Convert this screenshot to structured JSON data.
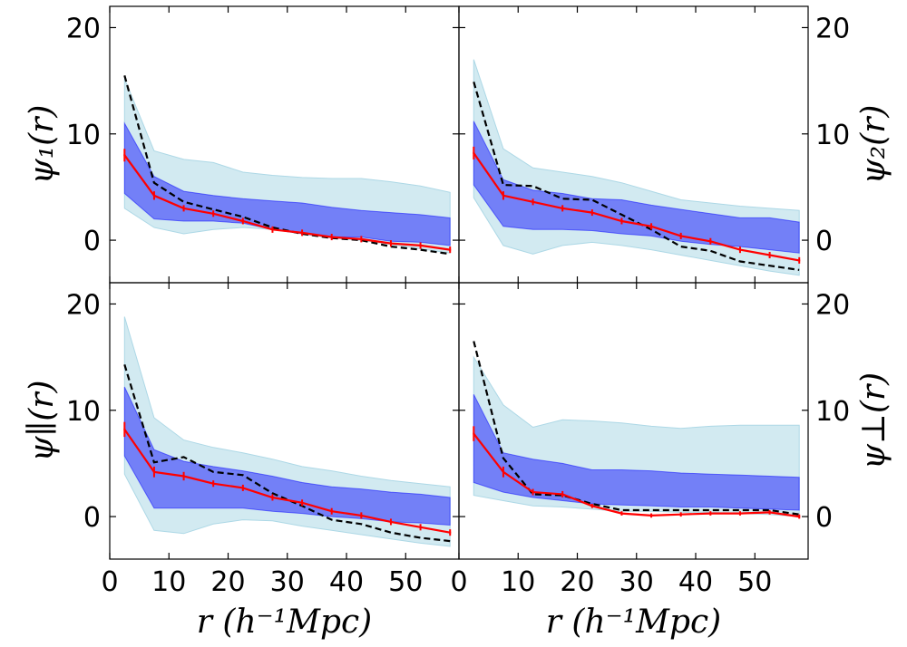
{
  "chart_data": {
    "type": "line",
    "layout": "2x2 grid of panels sharing x axis",
    "xlabel": "r (h⁻¹Mpc)",
    "xlim": [
      0,
      59
    ],
    "ylim": [
      -4,
      22
    ],
    "x_ticks": [
      0,
      10,
      20,
      30,
      40,
      50
    ],
    "y_ticks": [
      0,
      10,
      20
    ],
    "x": [
      2.5,
      7.5,
      12.5,
      17.5,
      22.5,
      27.5,
      32.5,
      37.5,
      42.5,
      47.5,
      52.5,
      57.5
    ],
    "colors": {
      "outer_band": "#add8e6",
      "inner_band": "#0000ff",
      "mean_line": "#ff0000",
      "dashed_line": "#000000"
    },
    "panels": [
      {
        "ylabel": "ψ₁(r)",
        "ylabel_side": "left",
        "mean": [
          8.0,
          4.2,
          3.0,
          2.5,
          1.8,
          1.0,
          0.7,
          0.3,
          0.1,
          -0.3,
          -0.5,
          -0.9
        ],
        "mean_err": [
          0.6,
          0.4,
          0.3,
          0.3,
          0.3,
          0.3,
          0.3,
          0.3,
          0.3,
          0.3,
          0.3,
          0.3
        ],
        "dashed": [
          15.5,
          5.4,
          3.6,
          2.9,
          2.2,
          1.2,
          0.6,
          0.2,
          0.0,
          -0.6,
          -0.9,
          -1.3
        ],
        "outer_low": [
          3.0,
          1.2,
          0.6,
          1.0,
          1.2,
          1.0,
          0.6,
          0.2,
          0.0,
          -0.4,
          -0.8,
          -1.2
        ],
        "outer_high": [
          15.2,
          8.4,
          7.6,
          7.3,
          6.4,
          6.1,
          5.9,
          5.8,
          5.8,
          5.5,
          5.1,
          4.5
        ],
        "inner_low": [
          4.4,
          2.0,
          1.8,
          1.8,
          1.6,
          1.0,
          0.6,
          0.3,
          0.3,
          -0.1,
          -0.2,
          -0.5
        ],
        "inner_high": [
          11.0,
          6.0,
          4.6,
          4.2,
          3.9,
          3.7,
          3.5,
          3.1,
          2.8,
          2.6,
          2.4,
          2.1
        ]
      },
      {
        "ylabel": "ψ₂(r)",
        "ylabel_side": "right",
        "mean": [
          8.2,
          4.2,
          3.6,
          3.0,
          2.6,
          1.8,
          1.3,
          0.4,
          -0.1,
          -0.9,
          -1.4,
          -1.9
        ],
        "mean_err": [
          0.6,
          0.4,
          0.3,
          0.3,
          0.3,
          0.3,
          0.3,
          0.3,
          0.3,
          0.3,
          0.3,
          0.3
        ],
        "dashed": [
          14.9,
          5.2,
          5.1,
          3.9,
          3.8,
          2.4,
          1.0,
          -0.6,
          -1.0,
          -2.0,
          -2.4,
          -2.8
        ],
        "outer_low": [
          4.0,
          -0.5,
          -1.3,
          -0.5,
          -0.2,
          -0.5,
          -0.9,
          -1.4,
          -1.9,
          -2.4,
          -2.9,
          -3.3
        ],
        "outer_high": [
          17.0,
          8.6,
          6.8,
          6.4,
          6.0,
          5.4,
          4.6,
          3.8,
          3.5,
          3.2,
          3.0,
          2.8
        ],
        "inner_low": [
          5.2,
          1.3,
          1.0,
          1.0,
          0.9,
          0.6,
          0.4,
          -0.1,
          -0.4,
          -0.6,
          -0.9,
          -1.2
        ],
        "inner_high": [
          11.2,
          5.7,
          4.7,
          4.4,
          3.9,
          3.8,
          3.3,
          2.9,
          2.5,
          2.1,
          2.1,
          1.7
        ]
      },
      {
        "ylabel": "ψ∥(r)",
        "ylabel_side": "left",
        "mean": [
          8.2,
          4.2,
          3.8,
          3.1,
          2.7,
          1.8,
          1.3,
          0.5,
          0.1,
          -0.5,
          -1.0,
          -1.5
        ],
        "mean_err": [
          0.7,
          0.5,
          0.4,
          0.3,
          0.3,
          0.3,
          0.3,
          0.3,
          0.3,
          0.3,
          0.3,
          0.3
        ],
        "dashed": [
          14.3,
          5.1,
          5.6,
          4.2,
          3.9,
          2.2,
          1.0,
          -0.3,
          -0.7,
          -1.5,
          -2.0,
          -2.3
        ],
        "outer_low": [
          4.0,
          -1.3,
          -1.6,
          -0.7,
          -0.3,
          -0.4,
          -0.9,
          -1.3,
          -1.7,
          -2.1,
          -2.5,
          -2.8
        ],
        "outer_high": [
          18.8,
          9.3,
          7.2,
          6.5,
          6.0,
          5.4,
          4.7,
          4.3,
          3.8,
          3.4,
          3.1,
          2.8
        ],
        "inner_low": [
          5.7,
          0.8,
          0.8,
          0.8,
          0.8,
          0.5,
          0.3,
          0.0,
          -0.2,
          -0.5,
          -0.6,
          -0.8
        ],
        "inner_high": [
          12.2,
          6.3,
          5.2,
          4.7,
          4.3,
          3.8,
          3.2,
          2.8,
          2.6,
          2.3,
          2.1,
          1.8
        ]
      },
      {
        "ylabel": "ψ⊥(r)",
        "ylabel_side": "right",
        "mean": [
          7.8,
          4.2,
          2.3,
          2.1,
          1.0,
          0.3,
          0.1,
          0.2,
          0.3,
          0.3,
          0.4,
          0.0
        ],
        "mean_err": [
          0.7,
          0.5,
          0.3,
          0.3,
          0.2,
          0.2,
          0.2,
          0.2,
          0.2,
          0.2,
          0.2,
          0.2
        ],
        "dashed": [
          16.5,
          5.5,
          2.1,
          2.0,
          1.2,
          0.6,
          0.6,
          0.6,
          0.6,
          0.6,
          0.6,
          0.2
        ],
        "outer_low": [
          2.0,
          1.5,
          1.0,
          0.9,
          0.7,
          0.5,
          0.5,
          0.4,
          0.4,
          0.3,
          0.2,
          0.0
        ],
        "outer_high": [
          15.0,
          10.5,
          8.4,
          9.1,
          9.0,
          8.8,
          8.5,
          8.3,
          8.5,
          8.6,
          8.6,
          8.6
        ],
        "inner_low": [
          3.2,
          2.3,
          1.8,
          1.5,
          1.2,
          1.1,
          1.0,
          0.9,
          0.9,
          0.8,
          0.7,
          0.6
        ],
        "inner_high": [
          11.5,
          6.0,
          5.4,
          5.0,
          4.4,
          4.4,
          4.3,
          4.1,
          4.0,
          3.9,
          3.8,
          3.7
        ]
      }
    ]
  }
}
